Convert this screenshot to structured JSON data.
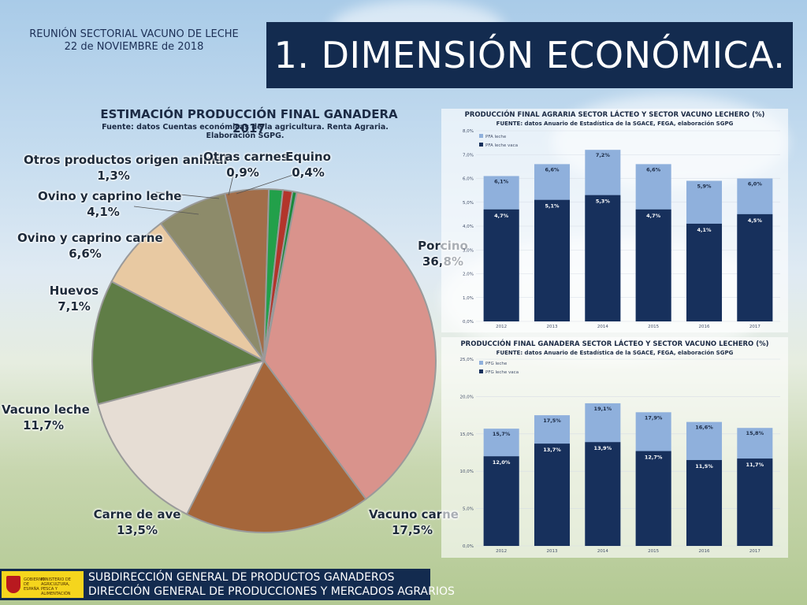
{
  "header": {
    "meeting_line1": "REUNIÓN SECTORIAL VACUNO DE LECHE",
    "meeting_line2": "22 de NOVIEMBRE de 2018",
    "title": "1. DIMENSIÓN ECONÓMICA."
  },
  "colors": {
    "title_bg": "#132b4f",
    "bar_dark": "#17305c",
    "bar_light": "#8fb0dc",
    "text_dark": "#1b2a44"
  },
  "footer": {
    "logo_left": "GOBIERNO DE ESPAÑA",
    "logo_right": "MINISTERIO DE AGRICULTURA, PESCA Y ALIMENTACIÓN",
    "line1": "SUBDIRECCIÓN GENERAL DE PRODUCTOS GANADEROS",
    "line2": "DIRECCIÓN GENERAL DE PRODUCCIONES Y MERCADOS AGRARIOS"
  },
  "chart_data": [
    {
      "type": "pie",
      "title": "ESTIMACIÓN PRODUCCIÓN FINAL GANADERA 2017",
      "subtitle": "Fuente: datos Cuentas económicas de la agricultura. Renta Agraria. Elaboración SGPG.",
      "slices": [
        {
          "label": "Porcino",
          "value": 36.8,
          "value_label": "36,8%",
          "color": "#d9938c"
        },
        {
          "label": "Vacuno carne",
          "value": 17.5,
          "value_label": "17,5%",
          "color": "#a5663a"
        },
        {
          "label": "Carne de ave",
          "value": 13.5,
          "value_label": "13,5%",
          "color": "#e6ddd4"
        },
        {
          "label": "Vacuno leche",
          "value": 11.7,
          "value_label": "11,7%",
          "color": "#5f7d46"
        },
        {
          "label": "Huevos",
          "value": 7.1,
          "value_label": "7,1%",
          "color": "#e8c9a2"
        },
        {
          "label": "Ovino y caprino carne",
          "value": 6.6,
          "value_label": "6,6%",
          "color": "#8d8b6a"
        },
        {
          "label": "Ovino y caprino leche",
          "value": 4.1,
          "value_label": "4,1%",
          "color": "#a26e4a"
        },
        {
          "label": "Otros productos origen animal",
          "value": 1.3,
          "value_label": "1,3%",
          "color": "#22a04a"
        },
        {
          "label": "Otras carnes",
          "value": 0.9,
          "value_label": "0,9%",
          "color": "#b3352b"
        },
        {
          "label": "Equino",
          "value": 0.4,
          "value_label": "0,4%",
          "color": "#1a8a3c"
        }
      ]
    },
    {
      "type": "bar",
      "stacked": false,
      "title": "PRODUCCIÓN FINAL AGRARIA SECTOR LÁCTEO Y SECTOR VACUNO LECHERO (%)",
      "subtitle": "FUENTE: datos Anuario de Estadística de la SGACE, FEGA, elaboración SGPG",
      "categories": [
        "2012",
        "2013",
        "2014",
        "2015",
        "2016",
        "2017"
      ],
      "series": [
        {
          "name": "PFA leche",
          "values": [
            6.1,
            6.6,
            7.2,
            6.6,
            5.9,
            6.0
          ],
          "labels": [
            "6,1%",
            "6,6%",
            "7,2%",
            "6,6%",
            "5,9%",
            "6,0%"
          ]
        },
        {
          "name": "PFA leche vaca",
          "values": [
            4.7,
            5.1,
            5.3,
            4.7,
            4.1,
            4.5
          ],
          "labels": [
            "4,7%",
            "5,1%",
            "5,3%",
            "4,7%",
            "4,1%",
            "4,5%"
          ]
        }
      ],
      "ylim": [
        0,
        8
      ],
      "yticks": [
        "0,0%",
        "1,0%",
        "2,0%",
        "3,0%",
        "4,0%",
        "5,0%",
        "6,0%",
        "7,0%",
        "8,0%"
      ],
      "legend": "top-left"
    },
    {
      "type": "bar",
      "stacked": false,
      "title": "PRODUCCIÓN FINAL GANADERA SECTOR LÁCTEO Y SECTOR VACUNO LECHERO (%)",
      "subtitle": "FUENTE: datos Anuario de Estadística de la SGACE, FEGA, elaboración SGPG",
      "categories": [
        "2012",
        "2013",
        "2014",
        "2015",
        "2016",
        "2017"
      ],
      "series": [
        {
          "name": "PFG leche",
          "values": [
            15.7,
            17.5,
            19.1,
            17.9,
            16.6,
            15.8
          ],
          "labels": [
            "15,7%",
            "17,5%",
            "19,1%",
            "17,9%",
            "16,6%",
            "15,8%"
          ]
        },
        {
          "name": "PFG leche vaca",
          "values": [
            12.0,
            13.7,
            13.9,
            12.7,
            11.5,
            11.7
          ],
          "labels": [
            "12,0%",
            "13,7%",
            "13,9%",
            "12,7%",
            "11,5%",
            "11,7%"
          ]
        }
      ],
      "ylim": [
        0,
        25
      ],
      "yticks": [
        "0,0%",
        "5,0%",
        "10,0%",
        "15,0%",
        "20,0%",
        "25,0%"
      ],
      "legend": "top-left"
    }
  ]
}
